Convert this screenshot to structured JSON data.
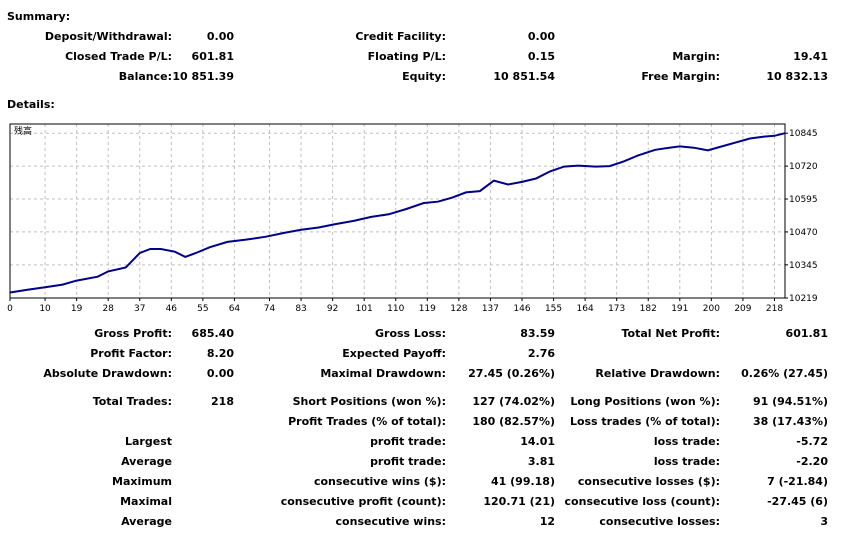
{
  "summary": {
    "title": "Summary:",
    "deposit_label": "Deposit/Withdrawal:",
    "deposit_value": "0.00",
    "credit_label": "Credit Facility:",
    "credit_value": "0.00",
    "closed_label": "Closed Trade P/L:",
    "closed_value": "601.81",
    "floating_label": "Floating P/L:",
    "floating_value": "0.15",
    "margin_label": "Margin:",
    "margin_value": "19.41",
    "balance_label": "Balance:",
    "balance_value": "10 851.39",
    "equity_label": "Equity:",
    "equity_value": "10 851.54",
    "free_margin_label": "Free Margin:",
    "free_margin_value": "10 832.13"
  },
  "details": {
    "title": "Details:",
    "chart_corner_label": "残高",
    "colors": {
      "line": "#00008b",
      "grid": "#c0c0c0",
      "frame": "#000000"
    },
    "rows": [
      {
        "c1l": "Gross Profit:",
        "c1v": "685.40",
        "c2l": "Gross Loss:",
        "c2v": "83.59",
        "c3l": "Total Net Profit:",
        "c3v": "601.81"
      },
      {
        "c1l": "Profit Factor:",
        "c1v": "8.20",
        "c2l": "Expected Payoff:",
        "c2v": "2.76",
        "c3l": "",
        "c3v": ""
      },
      {
        "c1l": "Absolute Drawdown:",
        "c1v": "0.00",
        "c2l": "Maximal Drawdown:",
        "c2v": "27.45 (0.26%)",
        "c3l": "Relative Drawdown:",
        "c3v": "0.26% (27.45)"
      },
      {
        "c1l": "Total Trades:",
        "c1v": "218",
        "c2l": "Short Positions (won %):",
        "c2v": "127 (74.02%)",
        "c3l": "Long Positions (won %):",
        "c3v": "91 (94.51%)"
      },
      {
        "c1l": "",
        "c1v": "",
        "c2l": "Profit Trades (% of total):",
        "c2v": "180 (82.57%)",
        "c3l": "Loss trades (% of total):",
        "c3v": "38 (17.43%)"
      },
      {
        "c1l": "Largest",
        "c1v": "",
        "c2l": "profit trade:",
        "c2v": "14.01",
        "c3l": "loss trade:",
        "c3v": "-5.72"
      },
      {
        "c1l": "Average",
        "c1v": "",
        "c2l": "profit trade:",
        "c2v": "3.81",
        "c3l": "loss trade:",
        "c3v": "-2.20"
      },
      {
        "c1l": "Maximum",
        "c1v": "",
        "c2l": "consecutive wins ($):",
        "c2v": "41 (99.18)",
        "c3l": "consecutive losses ($):",
        "c3v": "7 (-21.84)"
      },
      {
        "c1l": "Maximal",
        "c1v": "",
        "c2l": "consecutive profit (count):",
        "c2v": "120.71 (21)",
        "c3l": "consecutive loss (count):",
        "c3v": "-27.45 (6)"
      },
      {
        "c1l": "Average",
        "c1v": "",
        "c2l": "consecutive wins:",
        "c2v": "12",
        "c3l": "consecutive losses:",
        "c3v": "3"
      }
    ]
  },
  "chart_data": {
    "type": "line",
    "x_tick_labels": [
      "0",
      "10",
      "19",
      "28",
      "37",
      "46",
      "55",
      "64",
      "74",
      "83",
      "92",
      "101",
      "110",
      "119",
      "128",
      "137",
      "146",
      "155",
      "164",
      "173",
      "182",
      "191",
      "200",
      "209",
      "218"
    ],
    "y_tick_labels": [
      "10845",
      "10720",
      "10595",
      "10470",
      "10345",
      "10219"
    ],
    "xlim": [
      0,
      221
    ],
    "ylim": [
      10219,
      10880
    ],
    "grid": true,
    "series": [
      {
        "x": [
          0,
          5,
          10,
          15,
          19,
          25,
          28,
          33,
          37,
          40,
          43,
          47,
          50,
          53,
          57,
          62,
          67,
          73,
          78,
          83,
          88,
          93,
          98,
          103,
          108,
          113,
          118,
          122,
          126,
          130,
          134,
          138,
          142,
          146,
          150,
          154,
          158,
          162,
          167,
          171,
          175,
          179,
          184,
          188,
          191,
          195,
          199,
          203,
          207,
          211,
          215,
          218,
          221
        ],
        "y": [
          10240,
          10250,
          10260,
          10270,
          10285,
          10300,
          10320,
          10335,
          10390,
          10405,
          10405,
          10395,
          10375,
          10390,
          10412,
          10432,
          10440,
          10452,
          10466,
          10478,
          10487,
          10500,
          10512,
          10527,
          10537,
          10557,
          10580,
          10585,
          10600,
          10620,
          10625,
          10665,
          10650,
          10660,
          10673,
          10700,
          10718,
          10722,
          10718,
          10720,
          10738,
          10760,
          10782,
          10790,
          10795,
          10790,
          10780,
          10795,
          10810,
          10825,
          10832,
          10835,
          10845
        ]
      }
    ]
  }
}
